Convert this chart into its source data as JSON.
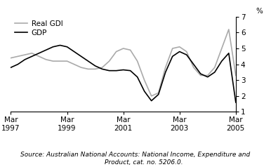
{
  "title": "",
  "ylabel": "%",
  "ylim": [
    1,
    7
  ],
  "yticks": [
    1,
    2,
    3,
    4,
    5,
    6,
    7
  ],
  "source_line1": "Source: Australian National Accounts: National Income, Expenditure and",
  "source_line2": "        Product, cat. no. 5206.0.",
  "xtick_labels": [
    "Mar\n1997",
    "Mar\n1999",
    "Mar\n2001",
    "Mar\n2003",
    "Mar\n2005"
  ],
  "xtick_positions": [
    0,
    8,
    16,
    24,
    32
  ],
  "gdp_color": "#000000",
  "gdi_color": "#aaaaaa",
  "gdp_label": "GDP",
  "gdi_label": "Real GDI",
  "x": [
    0,
    1,
    2,
    3,
    4,
    5,
    6,
    7,
    8,
    9,
    10,
    11,
    12,
    13,
    14,
    15,
    16,
    17,
    18,
    19,
    20,
    21,
    22,
    23,
    24,
    25,
    26,
    27,
    28,
    29,
    30,
    31,
    32
  ],
  "gdp": [
    3.8,
    4.0,
    4.3,
    4.5,
    4.7,
    4.9,
    5.1,
    5.2,
    5.1,
    4.8,
    4.5,
    4.2,
    3.9,
    3.7,
    3.6,
    3.6,
    3.65,
    3.6,
    3.2,
    2.3,
    1.7,
    2.1,
    3.5,
    4.5,
    4.8,
    4.6,
    4.0,
    3.4,
    3.2,
    3.5,
    4.2,
    4.7,
    1.6
  ],
  "gdi": [
    4.4,
    4.5,
    4.6,
    4.7,
    4.5,
    4.3,
    4.2,
    4.2,
    4.2,
    4.0,
    3.8,
    3.7,
    3.7,
    3.8,
    4.2,
    4.8,
    5.0,
    4.9,
    4.2,
    3.0,
    2.0,
    2.2,
    3.8,
    5.0,
    5.1,
    4.8,
    3.8,
    3.3,
    3.3,
    3.8,
    5.0,
    6.2,
    3.3
  ],
  "linewidth": 1.2,
  "background_color": "#ffffff",
  "legend_fontsize": 7.5,
  "source_fontsize": 6.5,
  "tick_fontsize": 7.5
}
